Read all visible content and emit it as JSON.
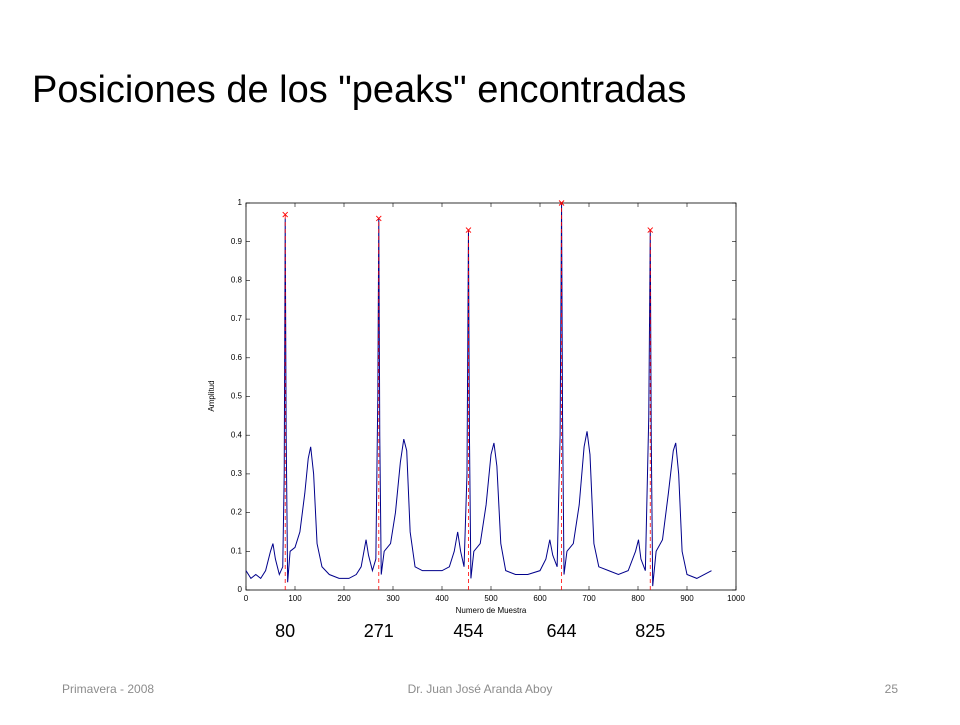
{
  "header": {
    "title": "Posiciones de los \"peaks\" encontradas"
  },
  "chart_data": {
    "type": "line",
    "xlabel": "Numero de Muestra",
    "ylabel": "Amplitud",
    "xlim": [
      0,
      1000
    ],
    "ylim": [
      0,
      1
    ],
    "xticks": [
      0,
      100,
      200,
      300,
      400,
      500,
      600,
      700,
      800,
      900,
      1000
    ],
    "yticks": [
      0,
      0.1,
      0.2,
      0.3,
      0.4,
      0.5,
      0.6,
      0.7,
      0.8,
      0.9,
      1
    ],
    "series": [
      {
        "color": "#00008b",
        "x": [
          0,
          10,
          20,
          30,
          40,
          50,
          55,
          60,
          68,
          75,
          78,
          80,
          82,
          85,
          90,
          100,
          110,
          120,
          127,
          132,
          138,
          145,
          155,
          170,
          190,
          210,
          225,
          235,
          245,
          250,
          258,
          265,
          269,
          271,
          273,
          276,
          282,
          295,
          305,
          315,
          322,
          328,
          335,
          345,
          360,
          380,
          400,
          415,
          425,
          432,
          438,
          445,
          451,
          454,
          456,
          459,
          465,
          478,
          490,
          500,
          506,
          512,
          520,
          530,
          550,
          575,
          600,
          612,
          620,
          626,
          635,
          641,
          644,
          646,
          649,
          655,
          668,
          680,
          690,
          696,
          702,
          710,
          720,
          740,
          760,
          780,
          795,
          801,
          806,
          815,
          822,
          825,
          827,
          830,
          837,
          850,
          862,
          872,
          877,
          883,
          890,
          900,
          920,
          935,
          950
        ],
        "values": [
          0.05,
          0.03,
          0.04,
          0.03,
          0.05,
          0.1,
          0.12,
          0.08,
          0.04,
          0.06,
          0.3,
          0.96,
          0.4,
          0.02,
          0.1,
          0.11,
          0.15,
          0.25,
          0.34,
          0.37,
          0.3,
          0.12,
          0.06,
          0.04,
          0.03,
          0.03,
          0.04,
          0.06,
          0.13,
          0.09,
          0.05,
          0.08,
          0.5,
          0.96,
          0.4,
          0.04,
          0.1,
          0.12,
          0.2,
          0.33,
          0.39,
          0.36,
          0.15,
          0.06,
          0.05,
          0.05,
          0.05,
          0.06,
          0.1,
          0.15,
          0.1,
          0.06,
          0.3,
          0.93,
          0.4,
          0.03,
          0.1,
          0.12,
          0.22,
          0.35,
          0.38,
          0.32,
          0.12,
          0.05,
          0.04,
          0.04,
          0.05,
          0.08,
          0.13,
          0.09,
          0.06,
          0.4,
          1.0,
          0.45,
          0.04,
          0.1,
          0.12,
          0.22,
          0.37,
          0.41,
          0.35,
          0.12,
          0.06,
          0.05,
          0.04,
          0.05,
          0.1,
          0.13,
          0.08,
          0.05,
          0.45,
          0.93,
          0.4,
          0.01,
          0.1,
          0.13,
          0.25,
          0.36,
          0.38,
          0.3,
          0.1,
          0.04,
          0.03,
          0.04,
          0.05
        ]
      },
      {
        "color": "#ff0000",
        "marker": "x",
        "x": [
          80,
          271,
          454,
          644,
          825
        ],
        "values": [
          0.97,
          0.96,
          0.93,
          1.0,
          0.93
        ]
      }
    ]
  },
  "footer": {
    "left": "Primavera - 2008",
    "center": "Dr. Juan José Aranda Aboy",
    "page": "25"
  }
}
